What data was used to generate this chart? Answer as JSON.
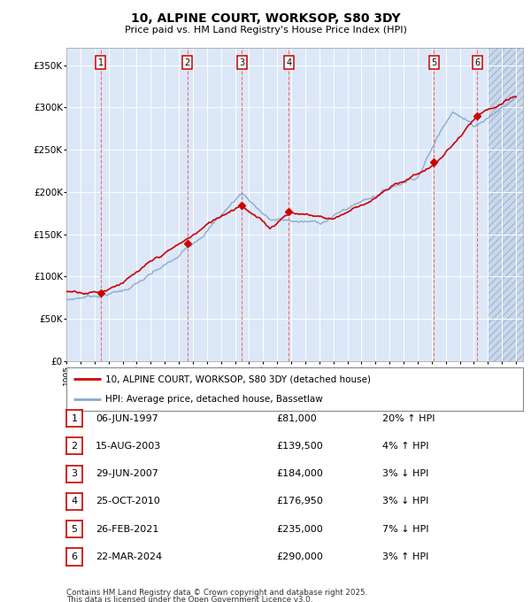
{
  "title": "10, ALPINE COURT, WORKSOP, S80 3DY",
  "subtitle": "Price paid vs. HM Land Registry's House Price Index (HPI)",
  "legend_line1": "10, ALPINE COURT, WORKSOP, S80 3DY (detached house)",
  "legend_line2": "HPI: Average price, detached house, Bassetlaw",
  "ylabel_ticks": [
    "£0",
    "£50K",
    "£100K",
    "£150K",
    "£200K",
    "£250K",
    "£300K",
    "£350K"
  ],
  "ytick_values": [
    0,
    50000,
    100000,
    150000,
    200000,
    250000,
    300000,
    350000
  ],
  "ylim": [
    0,
    370000
  ],
  "xlim_start": 1995.0,
  "xlim_end": 2027.5,
  "transactions": [
    {
      "num": 1,
      "date": "06-JUN-1997",
      "price": 81000,
      "x": 1997.44
    },
    {
      "num": 2,
      "date": "15-AUG-2003",
      "price": 139500,
      "x": 2003.62
    },
    {
      "num": 3,
      "date": "29-JUN-2007",
      "price": 184000,
      "x": 2007.49
    },
    {
      "num": 4,
      "date": "25-OCT-2010",
      "price": 176950,
      "x": 2010.82
    },
    {
      "num": 5,
      "date": "26-FEB-2021",
      "price": 235000,
      "x": 2021.16
    },
    {
      "num": 6,
      "date": "22-MAR-2024",
      "price": 290000,
      "x": 2024.23
    }
  ],
  "table_rows": [
    {
      "num": 1,
      "date": "06-JUN-1997",
      "price": "£81,000",
      "hpi": "20% ↑ HPI"
    },
    {
      "num": 2,
      "date": "15-AUG-2003",
      "price": "£139,500",
      "hpi": "4% ↑ HPI"
    },
    {
      "num": 3,
      "date": "29-JUN-2007",
      "price": "£184,000",
      "hpi": "3% ↓ HPI"
    },
    {
      "num": 4,
      "date": "25-OCT-2010",
      "price": "£176,950",
      "hpi": "3% ↓ HPI"
    },
    {
      "num": 5,
      "date": "26-FEB-2021",
      "price": "£235,000",
      "hpi": "7% ↓ HPI"
    },
    {
      "num": 6,
      "date": "22-MAR-2024",
      "price": "£290,000",
      "hpi": "3% ↑ HPI"
    }
  ],
  "footnote1": "Contains HM Land Registry data © Crown copyright and database right 2025.",
  "footnote2": "This data is licensed under the Open Government Licence v3.0.",
  "chart_bg": "#dce8f8",
  "red_line_color": "#cc0000",
  "blue_line_color": "#88aacc",
  "grid_color": "#ffffff",
  "dashed_line_color": "#ee6666"
}
